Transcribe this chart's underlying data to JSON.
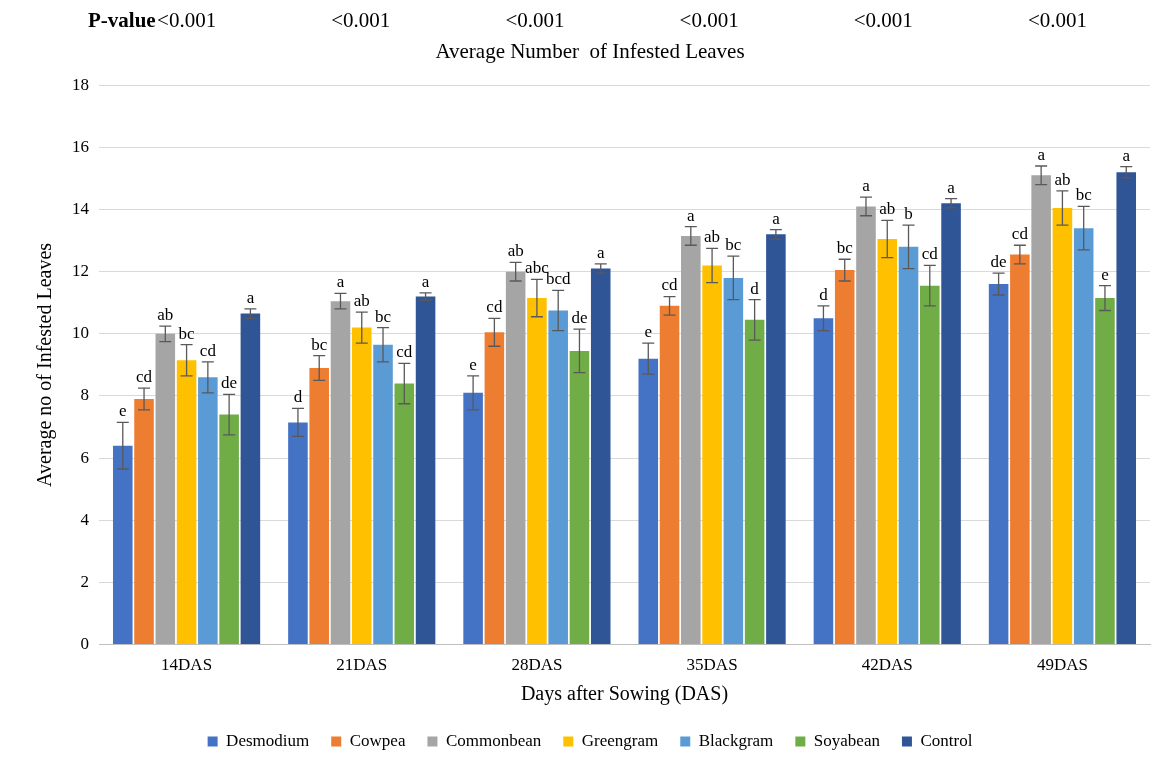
{
  "chart_data": {
    "type": "bar",
    "title": "Average Number  of Infested Leaves",
    "xlabel": "Days after Sowing (DAS)",
    "ylabel": "Average no of Infested Leaves",
    "annotations": [
      "P-value",
      "<0.001",
      "<0.001",
      "<0.001",
      "<0.001",
      "<0.001",
      "<0.001"
    ],
    "categories": [
      "14DAS",
      "21DAS",
      "28DAS",
      "35DAS",
      "42DAS",
      "49DAS"
    ],
    "series": [
      {
        "name": "Desmodium",
        "color": "#4472c4",
        "values": [
          6.4,
          7.15,
          8.1,
          9.2,
          10.5,
          11.6
        ],
        "errors": [
          0.75,
          0.45,
          0.55,
          0.5,
          0.4,
          0.35
        ],
        "value_labels": [
          "e",
          "d",
          "e",
          "e",
          "d",
          "de"
        ]
      },
      {
        "name": "Cowpea",
        "color": "#ed7d31",
        "values": [
          7.9,
          8.9,
          10.05,
          10.9,
          12.05,
          12.55
        ],
        "errors": [
          0.35,
          0.4,
          0.45,
          0.3,
          0.35,
          0.3
        ],
        "value_labels": [
          "cd",
          "bc",
          "cd",
          "cd",
          "bc",
          "cd"
        ]
      },
      {
        "name": "Commonbean",
        "color": "#a5a5a5",
        "values": [
          10.0,
          11.05,
          12.0,
          13.15,
          14.1,
          15.1
        ],
        "errors": [
          0.25,
          0.25,
          0.3,
          0.3,
          0.3,
          0.3
        ],
        "value_labels": [
          "ab",
          "a",
          "ab",
          "a",
          "a",
          "a"
        ]
      },
      {
        "name": "Greengram",
        "color": "#ffc000",
        "values": [
          9.15,
          10.2,
          11.15,
          12.2,
          13.05,
          14.05
        ],
        "errors": [
          0.5,
          0.5,
          0.6,
          0.55,
          0.6,
          0.55
        ],
        "value_labels": [
          "bc",
          "ab",
          "abc",
          "ab",
          "ab",
          "ab"
        ]
      },
      {
        "name": "Blackgram",
        "color": "#5b9bd5",
        "values": [
          8.6,
          9.65,
          10.75,
          11.8,
          12.8,
          13.4
        ],
        "errors": [
          0.5,
          0.55,
          0.65,
          0.7,
          0.7,
          0.7
        ],
        "value_labels": [
          "cd",
          "bc",
          "bcd",
          "bc",
          "b",
          "bc"
        ]
      },
      {
        "name": "Soyabean",
        "color": "#70ad47",
        "values": [
          7.4,
          8.4,
          9.45,
          10.45,
          11.55,
          11.15
        ],
        "errors": [
          0.65,
          0.65,
          0.7,
          0.65,
          0.65,
          0.4
        ],
        "value_labels": [
          "de",
          "cd",
          "de",
          "d",
          "cd",
          "e"
        ]
      },
      {
        "name": "Control",
        "color": "#2f5597",
        "values": [
          10.65,
          11.2,
          12.1,
          13.2,
          14.2,
          15.2
        ],
        "errors": [
          0.15,
          0.12,
          0.15,
          0.15,
          0.15,
          0.18
        ],
        "value_labels": [
          "a",
          "a",
          "a",
          "a",
          "a",
          "a"
        ]
      }
    ],
    "ylim": [
      0,
      18
    ],
    "yticks": [
      0,
      2,
      4,
      6,
      8,
      10,
      12,
      14,
      16,
      18
    ],
    "grid": "y",
    "legend": "bottom"
  }
}
